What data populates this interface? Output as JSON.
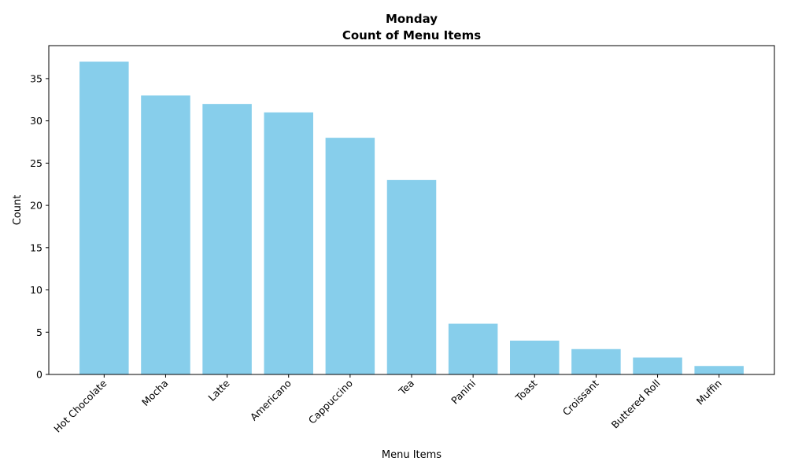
{
  "chart_data": {
    "type": "bar",
    "title": "Monday",
    "subtitle": "Count of Menu Items",
    "xlabel": "Menu Items",
    "ylabel": "Count",
    "categories": [
      "Hot Chocolate",
      "Mocha",
      "Latte",
      "Americano",
      "Cappuccino",
      "Tea",
      "Panini",
      "Toast",
      "Croissant",
      "Buttered Roll",
      "Muffin"
    ],
    "values": [
      37,
      33,
      32,
      31,
      28,
      23,
      6,
      4,
      3,
      2,
      1
    ],
    "ylim": [
      0,
      38.9
    ],
    "yticks": [
      0,
      5,
      10,
      15,
      20,
      25,
      30,
      35
    ],
    "grid": false,
    "bar_color": "#87CEEB",
    "x_tick_rotation_deg": 45
  }
}
